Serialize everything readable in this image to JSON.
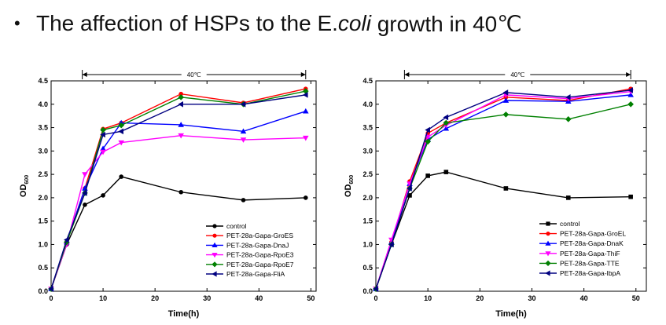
{
  "headline": {
    "bullet": "•",
    "before": "The affection of HSPs to the E.",
    "italic": "coli",
    "after": " growth in 40℃"
  },
  "chart_data": [
    {
      "type": "line",
      "title": "",
      "xlabel": "Time(h)",
      "ylabel": "OD",
      "ylabel_sub": "600",
      "xlim": [
        0,
        51
      ],
      "ylim": [
        0,
        4.5
      ],
      "xticks": [
        0,
        10,
        20,
        30,
        40,
        50
      ],
      "yticks": [
        0.0,
        0.5,
        1.0,
        1.5,
        2.0,
        2.5,
        3.0,
        3.5,
        4.0,
        4.5
      ],
      "annotation": {
        "text": "40℃",
        "from": 6,
        "to": 49
      },
      "legend_position": "bottom-right",
      "x": [
        0,
        3,
        6.5,
        10,
        13.5,
        25,
        37,
        49
      ],
      "series": [
        {
          "name": "control",
          "color": "#000000",
          "marker": "circle",
          "values": [
            0.05,
            1.0,
            1.85,
            2.05,
            2.45,
            2.12,
            1.95,
            2.0
          ]
        },
        {
          "name": "PET-28a-Gapa-GroES",
          "color": "#ff0000",
          "marker": "circle",
          "values": [
            0.05,
            1.05,
            2.2,
            3.47,
            3.6,
            4.22,
            4.03,
            4.33
          ]
        },
        {
          "name": "PET-28a-Gapa-DnaJ",
          "color": "#0000ff",
          "marker": "triangle-up",
          "values": [
            0.05,
            1.05,
            2.2,
            3.05,
            3.6,
            3.56,
            3.42,
            3.85
          ]
        },
        {
          "name": "PET-28a-Gapa-RpoE3",
          "color": "#ff00ff",
          "marker": "triangle-down",
          "values": [
            0.05,
            1.0,
            2.5,
            2.98,
            3.18,
            3.33,
            3.24,
            3.28
          ]
        },
        {
          "name": "PET-28a-Gapa-RpoE7",
          "color": "#008000",
          "marker": "diamond",
          "values": [
            0.05,
            1.05,
            2.1,
            3.45,
            3.55,
            4.15,
            4.0,
            4.28
          ]
        },
        {
          "name": "PET-28a-Gapa-FliA",
          "color": "#000080",
          "marker": "triangle-left",
          "values": [
            0.05,
            1.1,
            2.1,
            3.35,
            3.42,
            4.0,
            4.0,
            4.2
          ]
        }
      ]
    },
    {
      "type": "line",
      "title": "",
      "xlabel": "Time(h)",
      "ylabel": "OD",
      "ylabel_sub": "600",
      "xlim": [
        0,
        52
      ],
      "ylim": [
        0,
        4.5
      ],
      "xticks": [
        0,
        10,
        20,
        30,
        40,
        50
      ],
      "yticks": [
        0.0,
        0.5,
        1.0,
        1.5,
        2.0,
        2.5,
        3.0,
        3.5,
        4.0,
        4.5
      ],
      "annotation": {
        "text": "40℃",
        "from": 5.5,
        "to": 49
      },
      "legend_position": "bottom-right",
      "x": [
        0,
        3,
        6.5,
        10,
        13.5,
        25,
        37,
        49
      ],
      "series": [
        {
          "name": "control",
          "color": "#000000",
          "marker": "square",
          "values": [
            0.05,
            1.0,
            2.05,
            2.47,
            2.55,
            2.2,
            2.0,
            2.02
          ]
        },
        {
          "name": "PET-28a-Gapa-GroEL",
          "color": "#ff0000",
          "marker": "circle",
          "values": [
            0.05,
            1.05,
            2.35,
            3.38,
            3.6,
            4.15,
            4.08,
            4.33
          ]
        },
        {
          "name": "PET-28a-Gapa-DnaK",
          "color": "#0000ff",
          "marker": "triangle-up",
          "values": [
            0.05,
            1.05,
            2.3,
            3.25,
            3.48,
            4.08,
            4.06,
            4.2
          ]
        },
        {
          "name": "PET-28a-Gapa-ThiF",
          "color": "#ff00ff",
          "marker": "triangle-down",
          "values": [
            0.05,
            1.1,
            2.3,
            3.3,
            3.55,
            4.2,
            4.12,
            4.27
          ]
        },
        {
          "name": "PET-28a-Gapa-TTE",
          "color": "#008000",
          "marker": "diamond",
          "values": [
            0.05,
            1.0,
            2.2,
            3.2,
            3.6,
            3.78,
            3.68,
            4.0
          ]
        },
        {
          "name": "PET-28a-Gapa-IbpA",
          "color": "#000080",
          "marker": "triangle-left",
          "values": [
            0.05,
            1.0,
            2.2,
            3.45,
            3.72,
            4.25,
            4.15,
            4.3
          ]
        }
      ]
    }
  ]
}
